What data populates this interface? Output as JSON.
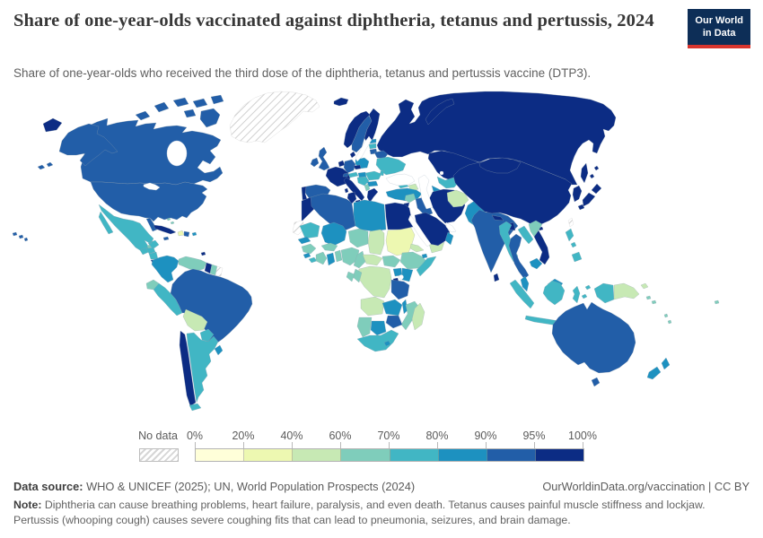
{
  "header": {
    "title": "Share of one-year-olds vaccinated against diphtheria, tetanus and pertussis, 2024",
    "subtitle": "Share of one-year-olds who received the third dose of the diphtheria, tetanus and pertussis vaccine (DTP3).",
    "logo_line1": "Our World",
    "logo_line2": "in Data",
    "logo_bg": "#0d2e57",
    "logo_accent": "#d8352e"
  },
  "legend": {
    "no_data_label": "No data",
    "tick_labels": [
      "0%",
      "20%",
      "40%",
      "60%",
      "70%",
      "80%",
      "90%",
      "95%",
      "100%"
    ],
    "bin_colors": [
      "#ffffd9",
      "#edf8b1",
      "#c7e9b4",
      "#7fcdbb",
      "#41b6c4",
      "#1d91c0",
      "#225ea8",
      "#0c2c84"
    ]
  },
  "footer": {
    "source_label": "Data source:",
    "source_text": " WHO & UNICEF (2025); UN, World Population Prospects (2024)",
    "link_text": "OurWorldinData.org/vaccination | CC BY",
    "note_label": "Note:",
    "note_text": " Diphtheria can cause breathing problems, heart failure, paralysis, and even death. Tetanus causes painful muscle stiffness and lockjaw. Pertussis (whooping cough) causes severe coughing fits that can lead to pneumonia, seizures, and brain damage."
  },
  "chart_data": {
    "type": "choropleth",
    "title": "Share of one-year-olds vaccinated against diphtheria, tetanus and pertussis, 2024",
    "unit": "% of one-year-olds (DTP3 third dose)",
    "bin_ranges": [
      "0-20%",
      "20-40%",
      "40-60%",
      "60-70%",
      "70-80%",
      "80-90%",
      "90-95%",
      "95-100%"
    ],
    "no_data_regions": [
      "greenland",
      "western-sahara",
      "french-guiana",
      "taiwan"
    ],
    "countries": {
      "usa": 6,
      "canada": 6,
      "greenland": "no-data",
      "mexico": 4,
      "belize": 3,
      "guatemala": 4,
      "honduras": 4,
      "nicaragua": 4,
      "costa-rica": 7,
      "panama": 5,
      "cuba": 7,
      "jamaica": 6,
      "haiti": 1,
      "dominican-republic": 6,
      "puerto-rico": 5,
      "bahamas": 3,
      "trinidad-and-tobago": 7,
      "colombia": 5,
      "venezuela": 3,
      "guyana": 7,
      "suriname": 3,
      "french-guiana": "no-data",
      "ecuador": 3,
      "peru": 4,
      "brazil": 6,
      "bolivia": 2,
      "paraguay": 4,
      "uruguay": 5,
      "chile": 7,
      "argentina": 4,
      "iceland": 7,
      "ireland": 6,
      "united-kingdom": 6,
      "portugal": 7,
      "spain": 6,
      "france": 7,
      "netherlands": 7,
      "germany": 6,
      "denmark": 7,
      "norway": 7,
      "sweden": 6,
      "finland": 7,
      "estonia": 5,
      "latvia": 4,
      "lithuania": 6,
      "poland": 5,
      "belarus": 6,
      "ukraine": 4,
      "moldova": 4,
      "czechia": 7,
      "switzerland": 6,
      "austria": 4,
      "hungary": 5,
      "romania": 4,
      "serbia": 4,
      "albania": 3,
      "bulgaria": 5,
      "greece": 7,
      "italy": 7,
      "russia": 7,
      "kazakhstan": 7,
      "uzbekistan": 4,
      "turkmenistan": 5,
      "kyrgyzstan": 7,
      "tajikistan": 7,
      "georgia": 4,
      "armenia": 7,
      "azerbaijan": 2,
      "turkey": 5,
      "syria": 3,
      "jordan": 7,
      "iraq": 6,
      "iran": 7,
      "saudi-arabia": 7,
      "yemen": 2,
      "oman": 5,
      "morocco": 7,
      "western-sahara": "no-data",
      "algeria": 6,
      "tunisia": 7,
      "libya": 5,
      "egypt": 7,
      "sudan": 1,
      "eritrea": 2,
      "chad": 2,
      "niger": 3,
      "mali": 5,
      "mauritania": 4,
      "senegal": 5,
      "guinea": 3,
      "sierra-leone": 5,
      "liberia": 4,
      "ivory-coast": 3,
      "ghana": 5,
      "benin-togo": 3,
      "burkina-faso": 3,
      "nigeria": 3,
      "cameroon": 3,
      "central-african-republic": 2,
      "south-sudan": 3,
      "ethiopia": 3,
      "somalia": 4,
      "djibouti": 5,
      "uganda": 5,
      "kenya": 5,
      "rwanda": 7,
      "drc": 2,
      "congo": 3,
      "gabon": 3,
      "tanzania": 6,
      "angola": 2,
      "zambia": 5,
      "malawi": 5,
      "mozambique": 3,
      "zimbabwe": 6,
      "namibia": 3,
      "botswana": 5,
      "south-africa": 4,
      "lesotho": 5,
      "madagascar": 2,
      "afghanistan": 2,
      "pakistan": 5,
      "india": 6,
      "nepal": 7,
      "bangladesh": 7,
      "sri-lanka": 7,
      "china": 7,
      "mongolia": 7,
      "korea": 7,
      "japan": 7,
      "taiwan": "no-data",
      "myanmar": 4,
      "laos": 4,
      "vietnam": 3,
      "vietnam-south": 7,
      "thailand": 6,
      "cambodia": 5,
      "malaysia": 5,
      "indonesia": 4,
      "philippines": 4,
      "papua-new-guinea": 2,
      "solomon-islands": 3,
      "vanuatu": 3,
      "fiji": 3,
      "australia": 6,
      "new-zealand": 5
    }
  }
}
